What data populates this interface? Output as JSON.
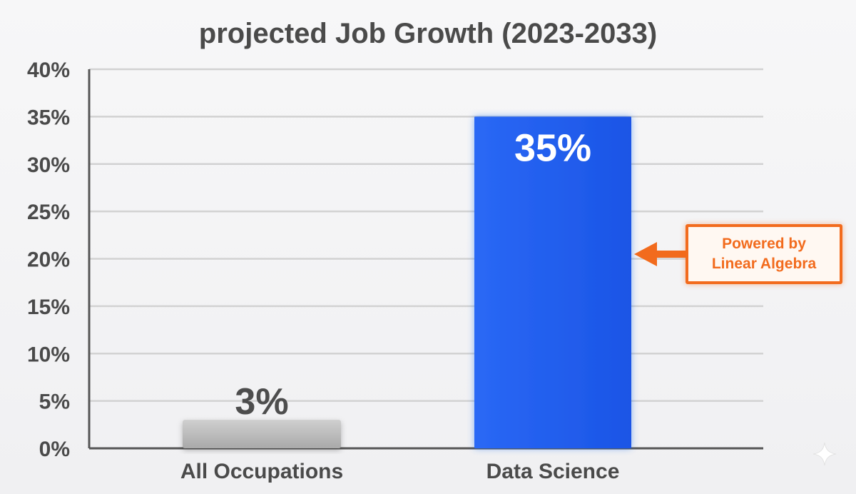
{
  "chart_data": {
    "type": "bar",
    "title": "projected Job Growth (2023-2033)",
    "categories": [
      "All Occupations",
      "Data Science"
    ],
    "values": [
      3,
      35
    ],
    "value_labels": [
      "3%",
      "35%"
    ],
    "y_ticks": [
      0,
      5,
      10,
      15,
      20,
      25,
      30,
      35,
      40
    ],
    "y_tick_labels": [
      "0%",
      "5%",
      "10%",
      "15%",
      "20%",
      "25%",
      "30%",
      "35%",
      "40%"
    ],
    "ylim": [
      0,
      40
    ],
    "grid": true,
    "legend": "none",
    "bar_colors": [
      "#bdbdbd",
      "#1f5ef0"
    ],
    "annotation": {
      "line1": "Powered by",
      "line2": "Linear Algebra",
      "target_category": "Data Science",
      "color": "#f26b1d"
    }
  }
}
